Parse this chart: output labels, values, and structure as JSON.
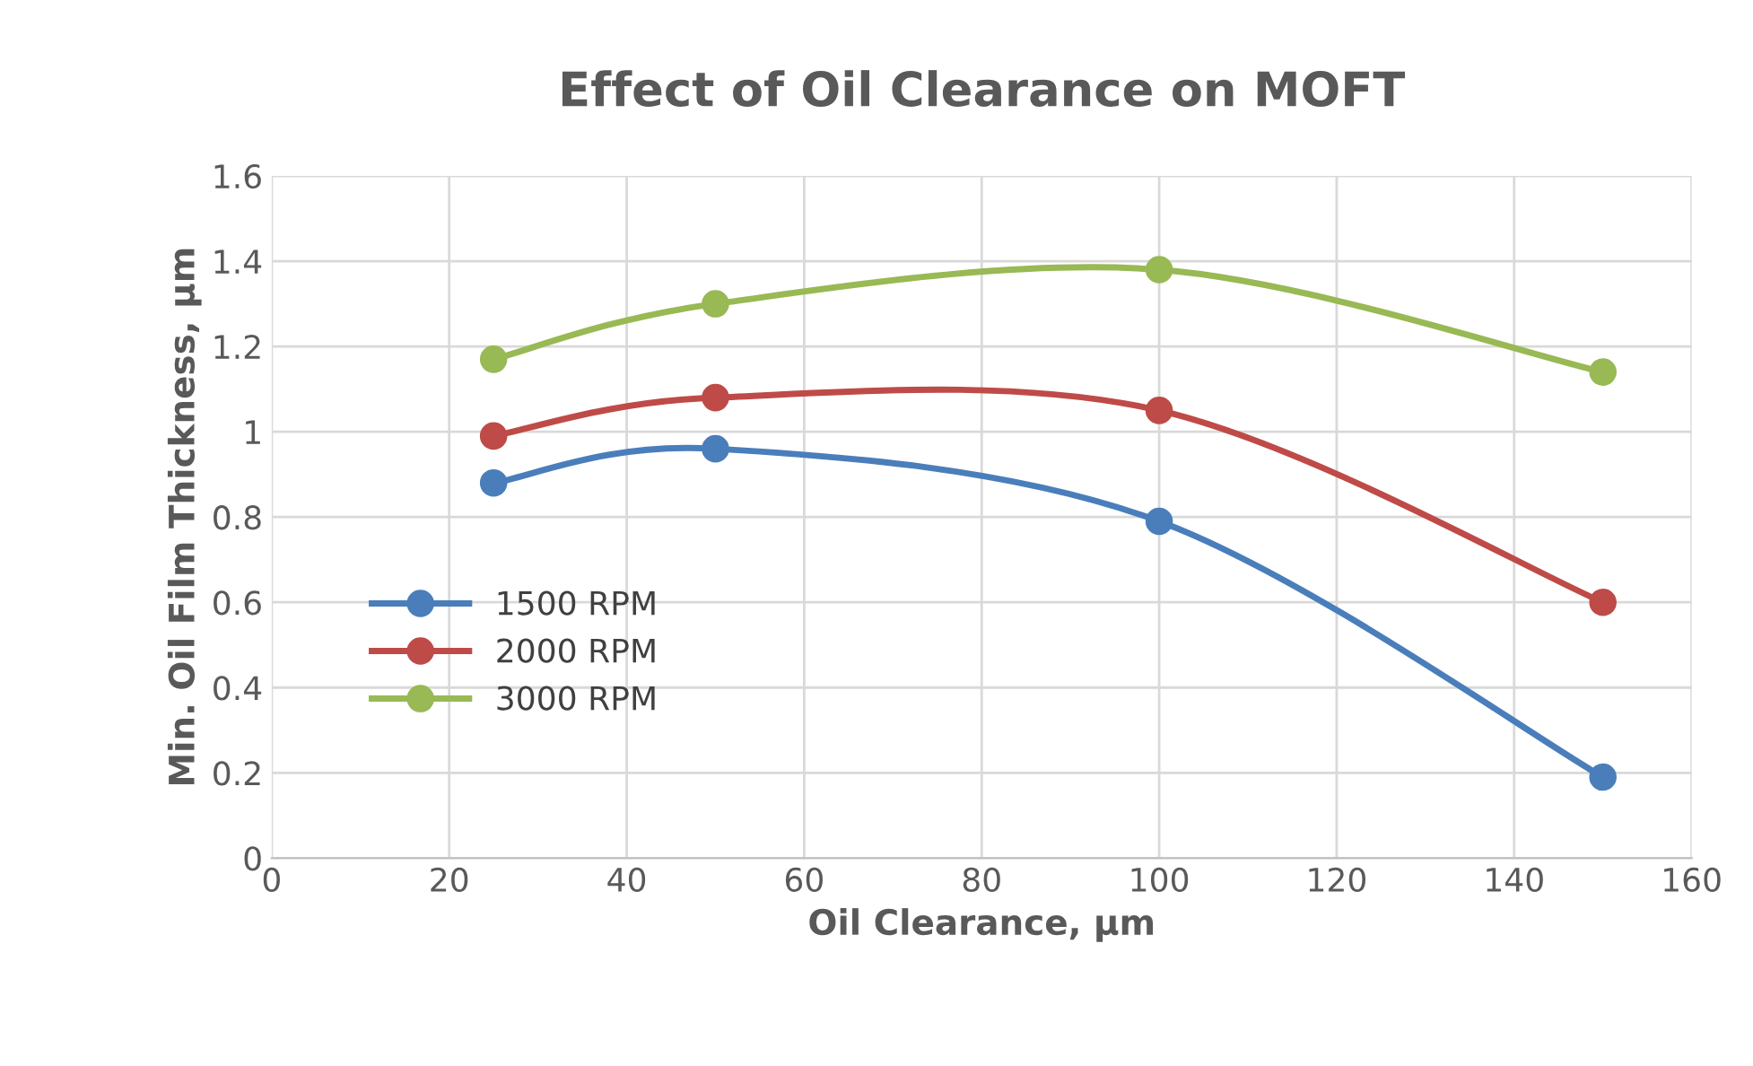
{
  "chart_data": {
    "type": "line",
    "title": "Effect of Oil Clearance on MOFT",
    "xlabel": "Oil Clearance, µm",
    "ylabel": "Min. Oil Film Thickness, µm",
    "x": [
      25,
      50,
      100,
      150
    ],
    "series": [
      {
        "name": "1500 RPM",
        "color": "#4a7ebb",
        "values": [
          0.88,
          0.96,
          0.79,
          0.19
        ]
      },
      {
        "name": "2000 RPM",
        "color": "#be4b48",
        "values": [
          0.99,
          1.08,
          1.05,
          0.6
        ]
      },
      {
        "name": "3000 RPM",
        "color": "#98b954",
        "values": [
          1.17,
          1.3,
          1.38,
          1.14
        ]
      }
    ],
    "xlim": [
      0,
      160
    ],
    "xticks": [
      0,
      20,
      40,
      60,
      80,
      100,
      120,
      140,
      160
    ],
    "ylim": [
      0,
      1.6
    ],
    "yticks": [
      0,
      0.2,
      0.4,
      0.6,
      0.8,
      1,
      1.2,
      1.4,
      1.6
    ],
    "grid": true,
    "legend": "left",
    "marker": "circle",
    "line_style": "solid"
  }
}
